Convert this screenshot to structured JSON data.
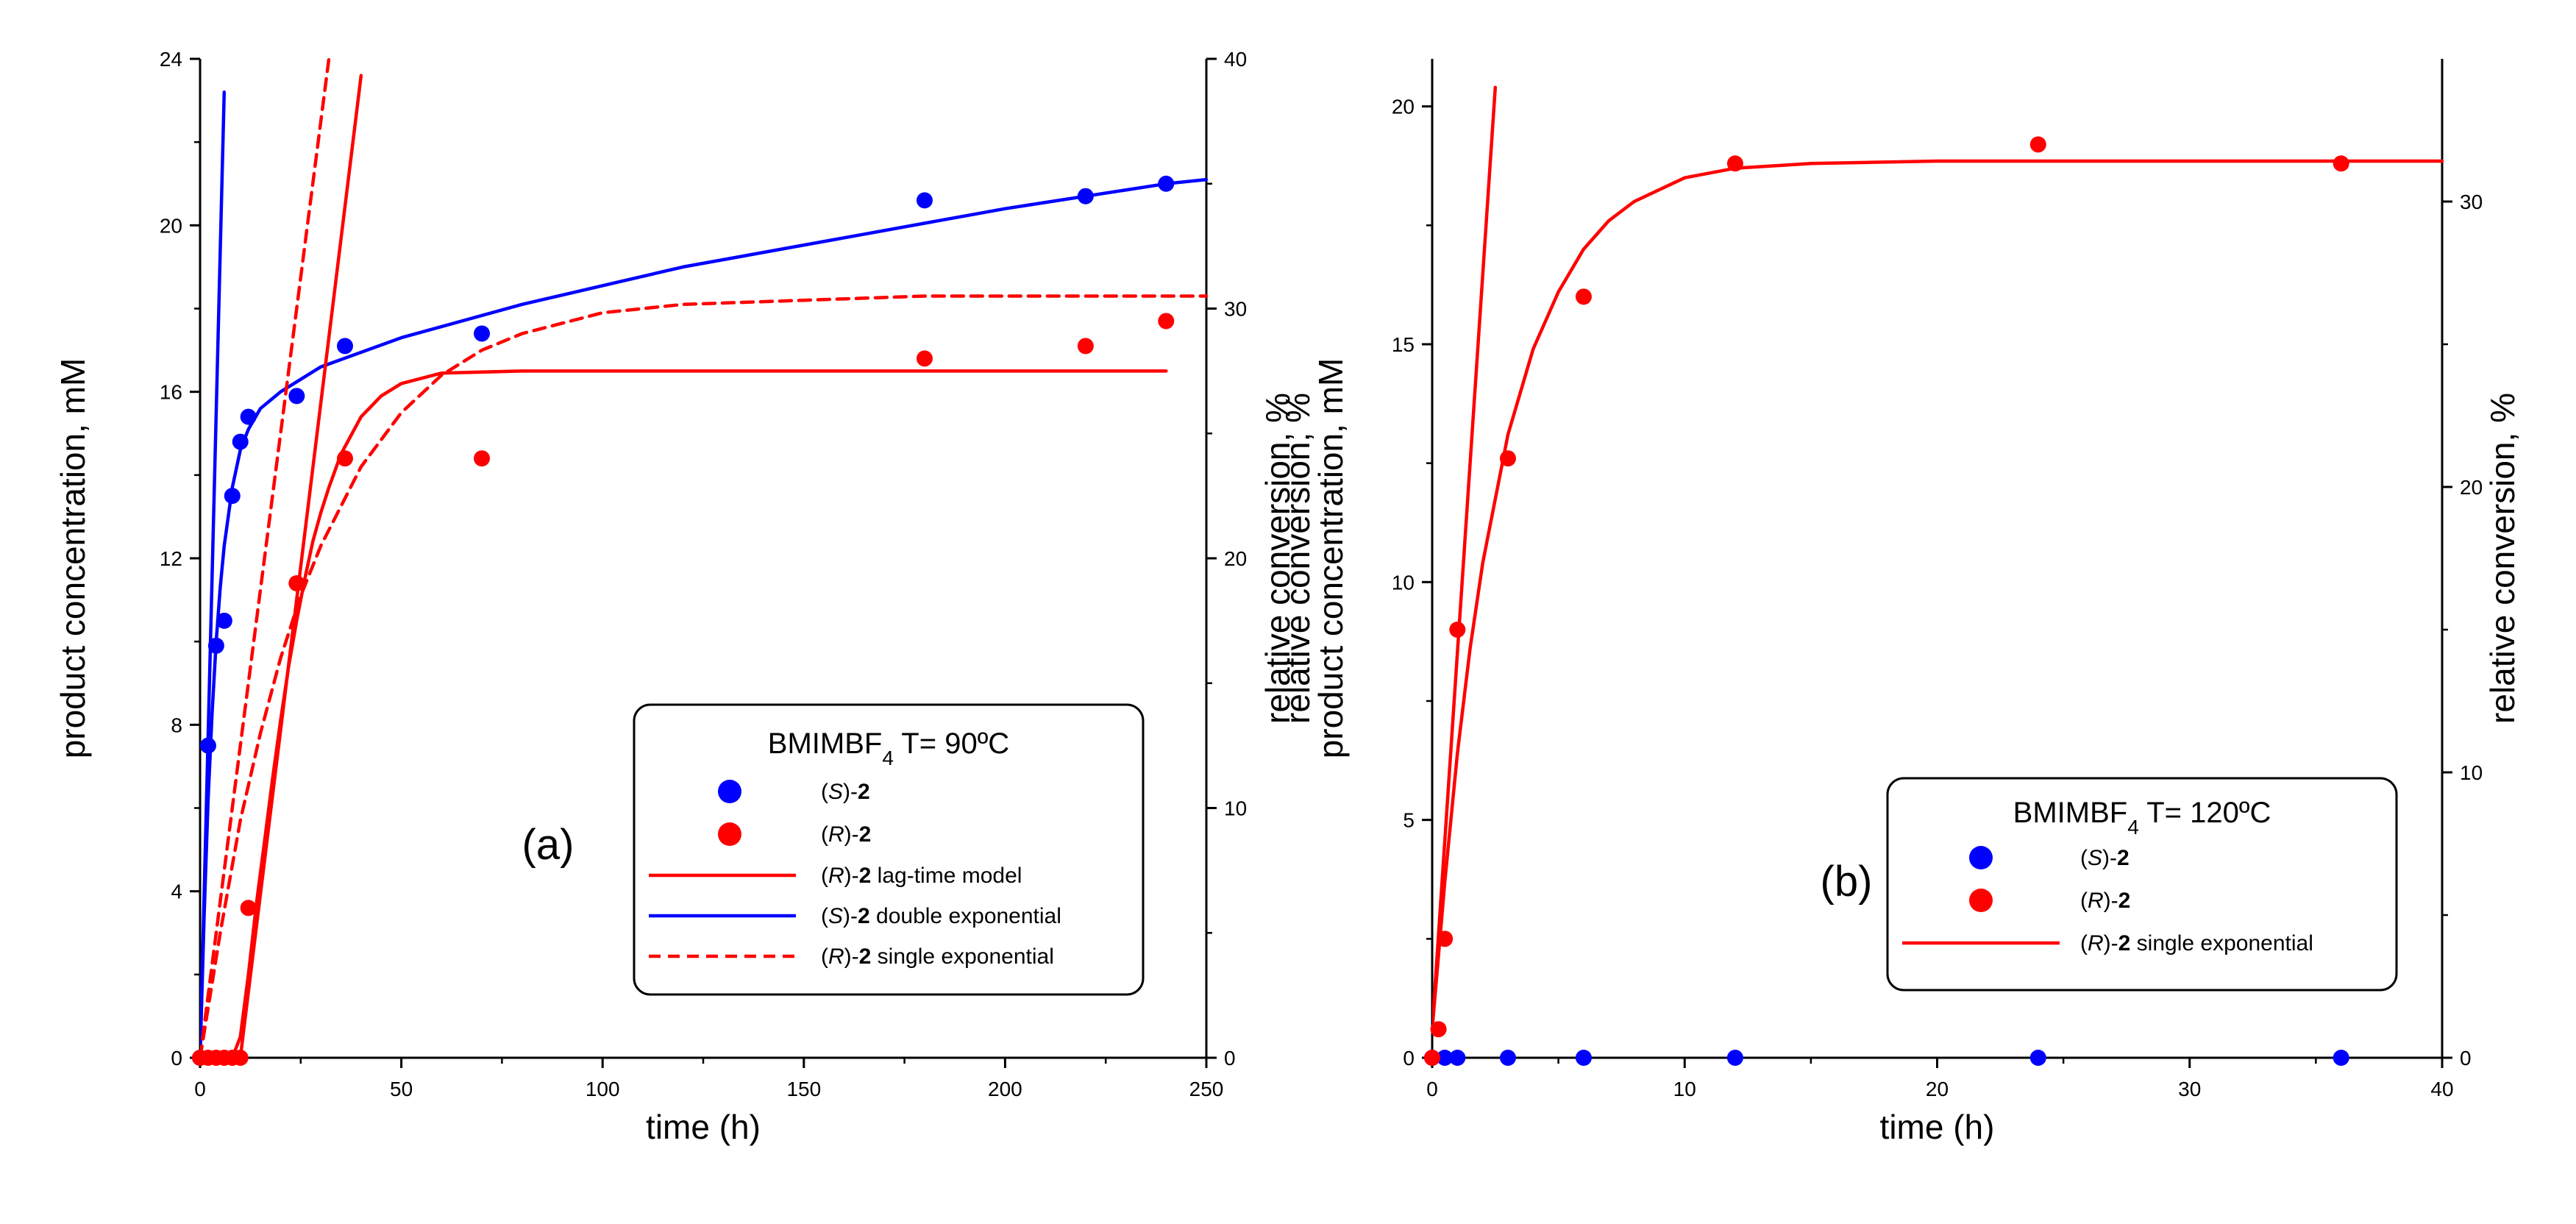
{
  "chart_data": [
    {
      "panel": "(a)",
      "type": "scatter",
      "title": "",
      "xlabel": "time (h)",
      "ylabel": "product concentration, mM",
      "y2label": "relative conversion, %",
      "xlim": [
        0,
        250
      ],
      "ylim": [
        0,
        24
      ],
      "y2lim": [
        0,
        40
      ],
      "xticks": [
        0,
        50,
        100,
        150,
        200,
        250
      ],
      "yticks": [
        0,
        4,
        8,
        12,
        16,
        20,
        24
      ],
      "y2ticks": [
        0,
        10,
        20,
        30,
        40
      ],
      "legend": {
        "title_main": "BMIMBF",
        "title_sub": "4",
        "title_rest": " T= 90ºC",
        "entries": [
          {
            "series": "(S)-2",
            "kind": "marker",
            "italic": "S",
            "prefix": "(",
            "mid": ")-",
            "bold": "2",
            "suffix": ""
          },
          {
            "series": "(R)-2",
            "kind": "marker",
            "italic": "R",
            "prefix": "(",
            "mid": ")-",
            "bold": "2",
            "suffix": ""
          },
          {
            "series": "(R)-2 lag-time model",
            "kind": "solid",
            "italic": "R",
            "prefix": "(",
            "mid": ")-",
            "bold": "2",
            "suffix": " lag-time model"
          },
          {
            "series": "(S)-2 double exponential",
            "kind": "solid",
            "italic": "S",
            "prefix": "(",
            "mid": ")-",
            "bold": "2",
            "suffix": " double exponential"
          },
          {
            "series": "(R)-2 single exponential",
            "kind": "dashed",
            "italic": "R",
            "prefix": "(",
            "mid": ")-",
            "bold": "2",
            "suffix": " single exponential"
          }
        ]
      },
      "series": [
        {
          "name": "(S)-2",
          "color": "#0000ff",
          "x": [
            0,
            2,
            4,
            6,
            8,
            10,
            12,
            24,
            36,
            70,
            180,
            220,
            240
          ],
          "y": [
            0,
            7.5,
            9.9,
            10.5,
            13.5,
            14.8,
            15.4,
            15.9,
            17.1,
            17.4,
            20.6,
            20.7,
            21.0
          ]
        },
        {
          "name": "(R)-2",
          "color": "#ff0000",
          "x": [
            0,
            2,
            4,
            6,
            8,
            10,
            12,
            24,
            36,
            70,
            180,
            220,
            240
          ],
          "y": [
            0,
            0,
            0,
            0,
            0,
            0,
            3.6,
            11.4,
            14.4,
            14.4,
            16.8,
            17.1,
            17.7
          ]
        }
      ],
      "fits": [
        {
          "name": "(S)-2 double exponential",
          "color": "#0000ff",
          "dash": false,
          "x": [
            0,
            1,
            2,
            3,
            4,
            5,
            6,
            8,
            10,
            12,
            15,
            20,
            30,
            50,
            80,
            120,
            160,
            200,
            240,
            250
          ],
          "y": [
            0,
            3.4,
            6.2,
            8.3,
            10.0,
            11.3,
            12.3,
            13.7,
            14.6,
            15.1,
            15.6,
            16.0,
            16.6,
            17.3,
            18.1,
            19.0,
            19.7,
            20.4,
            21.0,
            21.1
          ]
        },
        {
          "name": "(S)-2 initial slope",
          "color": "#0000ff",
          "dash": false,
          "x": [
            0,
            6
          ],
          "y": [
            0,
            23.2
          ]
        },
        {
          "name": "(R)-2 lag-time model",
          "color": "#ff0000",
          "dash": false,
          "x": [
            0,
            8,
            10,
            12,
            14,
            16,
            18,
            20,
            22,
            24,
            26,
            28,
            30,
            32,
            35,
            40,
            45,
            50,
            60,
            80,
            100,
            150,
            200,
            240
          ],
          "y": [
            0,
            0,
            0.5,
            2.0,
            3.7,
            5.2,
            6.7,
            8.1,
            9.4,
            10.5,
            11.5,
            12.4,
            13.1,
            13.7,
            14.5,
            15.4,
            15.9,
            16.2,
            16.45,
            16.5,
            16.5,
            16.5,
            16.5,
            16.5
          ]
        },
        {
          "name": "(R)-2 lag-time initial slope",
          "color": "#ff0000",
          "dash": false,
          "x": [
            10,
            40
          ],
          "y": [
            0,
            23.6
          ]
        },
        {
          "name": "(R)-2 single exponential",
          "color": "#ff0000",
          "dash": true,
          "x": [
            0,
            5,
            10,
            15,
            20,
            25,
            30,
            40,
            50,
            60,
            70,
            80,
            100,
            120,
            150,
            180,
            200,
            250
          ],
          "y": [
            0,
            3.0,
            5.7,
            7.8,
            9.6,
            11.1,
            12.3,
            14.2,
            15.5,
            16.4,
            17.0,
            17.4,
            17.9,
            18.1,
            18.2,
            18.3,
            18.3,
            18.3
          ]
        },
        {
          "name": "(R)-2 single exponential initial slope",
          "color": "#ff0000",
          "dash": true,
          "x": [
            0,
            32
          ],
          "y": [
            0,
            24.0
          ]
        }
      ]
    },
    {
      "panel": "(b)",
      "type": "scatter",
      "title": "",
      "xlabel": "time (h)",
      "ylabel": "product concentration, mM",
      "y2label": "relative conversion, %",
      "xlim": [
        0,
        40
      ],
      "ylim": [
        0,
        21
      ],
      "y2lim": [
        0,
        35
      ],
      "xticks": [
        0,
        10,
        20,
        30,
        40
      ],
      "yticks": [
        0,
        5,
        10,
        15,
        20
      ],
      "y2ticks": [
        0,
        10,
        20,
        30
      ],
      "legend": {
        "title_main": "BMIMBF",
        "title_sub": "4",
        "title_rest": " T= 120ºC",
        "entries": [
          {
            "series": "(S)-2",
            "kind": "marker",
            "italic": "S",
            "prefix": "(",
            "mid": ")-",
            "bold": "2",
            "suffix": ""
          },
          {
            "series": "(R)-2",
            "kind": "marker",
            "italic": "R",
            "prefix": "(",
            "mid": ")-",
            "bold": "2",
            "suffix": ""
          },
          {
            "series": "(R)-2 single exponential",
            "kind": "solid",
            "italic": "R",
            "prefix": "(",
            "mid": ")-",
            "bold": "2",
            "suffix": " single exponential"
          }
        ]
      },
      "series": [
        {
          "name": "(S)-2",
          "color": "#0000ff",
          "x": [
            0,
            0.5,
            1,
            3,
            6,
            12,
            24,
            36
          ],
          "y": [
            0,
            0,
            0,
            0,
            0,
            0,
            0,
            0
          ]
        },
        {
          "name": "(R)-2",
          "color": "#ff0000",
          "x": [
            0,
            0.25,
            0.5,
            1,
            3,
            6,
            12,
            24,
            36
          ],
          "y": [
            0,
            0.6,
            2.5,
            9.0,
            12.6,
            16.0,
            18.8,
            19.2,
            18.8
          ]
        }
      ],
      "fits": [
        {
          "name": "(R)-2 single exponential",
          "color": "#ff0000",
          "dash": false,
          "x": [
            0,
            0.5,
            1,
            1.5,
            2,
            3,
            4,
            5,
            6,
            7,
            8,
            10,
            12,
            15,
            20,
            30,
            40
          ],
          "y": [
            0.6,
            3.7,
            6.4,
            8.6,
            10.4,
            13.1,
            14.9,
            16.1,
            17.0,
            17.6,
            18.0,
            18.5,
            18.7,
            18.8,
            18.85,
            18.85,
            18.85
          ]
        },
        {
          "name": "(R)-2 single exponential initial slope",
          "color": "#ff0000",
          "dash": false,
          "x": [
            0,
            2.5
          ],
          "y": [
            0.6,
            20.4
          ]
        }
      ]
    }
  ]
}
